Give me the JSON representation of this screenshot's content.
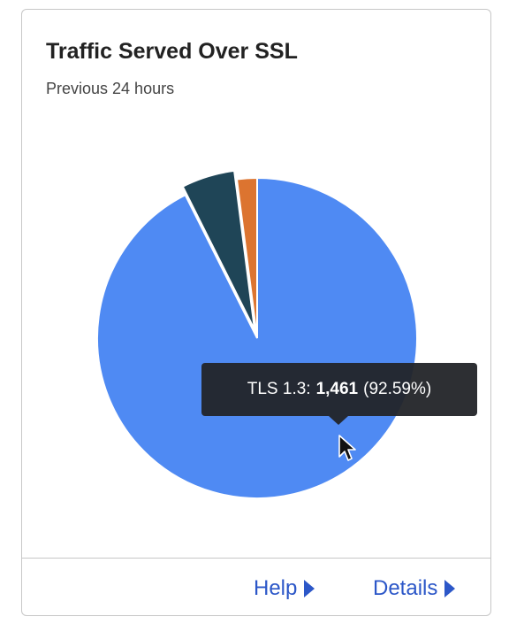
{
  "card": {
    "title": "Traffic Served Over SSL",
    "subtitle": "Previous 24 hours"
  },
  "chart_data": {
    "type": "pie",
    "slices": [
      {
        "label": "TLS 1.3",
        "value": 1461,
        "percent": "92.59%",
        "color": "#4f8af3"
      },
      {
        "label": "",
        "value": 85,
        "color": "#1f4557"
      },
      {
        "label": "",
        "value": 32,
        "color": "#dc7430"
      }
    ]
  },
  "tooltip": {
    "label": "TLS 1.3:",
    "value": "1,461",
    "percent": "(92.59%)"
  },
  "footer": {
    "help_label": "Help",
    "details_label": "Details"
  },
  "colors": {
    "link": "#2c57c8",
    "border": "#c7c7c7"
  },
  "icons": [
    "caret-right-icon",
    "mouse-pointer-icon"
  ]
}
